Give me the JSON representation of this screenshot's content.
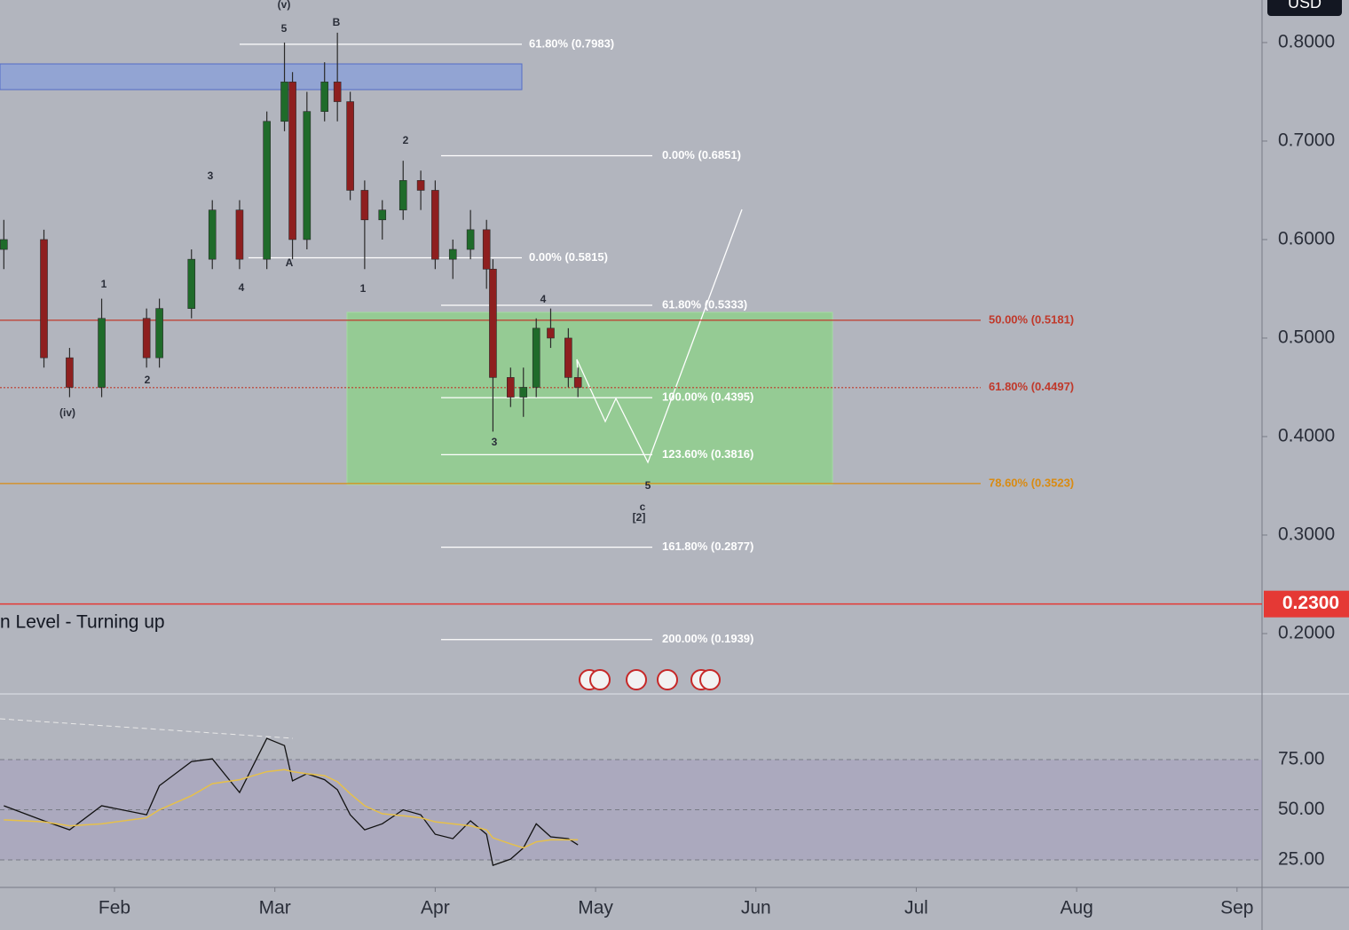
{
  "chart_data": [
    {
      "type": "candlestick",
      "currency": "USD",
      "indicator_title": "n Level - Turning up",
      "up_color": "#1f6b2a",
      "down_color": "#8e1f1f",
      "x": [
        1.31,
        1.56,
        1.72,
        1.92,
        2.2,
        2.28,
        2.48,
        2.61,
        2.78,
        2.95,
        3.06,
        3.11,
        3.2,
        3.31,
        3.39,
        3.47,
        3.56,
        3.67,
        3.8,
        3.91,
        4.0,
        4.11,
        4.22,
        4.32,
        4.36,
        4.47,
        4.55,
        4.63,
        4.72,
        4.83,
        4.89
      ],
      "open": [
        0.59,
        0.6,
        0.48,
        0.45,
        0.52,
        0.48,
        0.53,
        0.58,
        0.63,
        0.58,
        0.72,
        0.76,
        0.6,
        0.73,
        0.76,
        0.74,
        0.65,
        0.62,
        0.63,
        0.66,
        0.65,
        0.58,
        0.59,
        0.61,
        0.57,
        0.46,
        0.44,
        0.45,
        0.51,
        0.5,
        0.46
      ],
      "high": [
        0.62,
        0.61,
        0.49,
        0.54,
        0.53,
        0.54,
        0.59,
        0.64,
        0.64,
        0.73,
        0.8,
        0.77,
        0.75,
        0.78,
        0.81,
        0.75,
        0.66,
        0.64,
        0.68,
        0.67,
        0.66,
        0.6,
        0.63,
        0.62,
        0.58,
        0.47,
        0.47,
        0.52,
        0.53,
        0.51,
        0.47
      ],
      "low": [
        0.57,
        0.47,
        0.44,
        0.44,
        0.47,
        0.47,
        0.52,
        0.57,
        0.57,
        0.57,
        0.71,
        0.58,
        0.59,
        0.72,
        0.72,
        0.64,
        0.57,
        0.6,
        0.62,
        0.63,
        0.57,
        0.56,
        0.58,
        0.55,
        0.405,
        0.43,
        0.42,
        0.44,
        0.49,
        0.45,
        0.44
      ],
      "close": [
        0.6,
        0.48,
        0.45,
        0.52,
        0.48,
        0.53,
        0.58,
        0.63,
        0.58,
        0.72,
        0.76,
        0.6,
        0.73,
        0.76,
        0.74,
        0.65,
        0.62,
        0.63,
        0.66,
        0.65,
        0.58,
        0.59,
        0.61,
        0.57,
        0.46,
        0.44,
        0.45,
        0.51,
        0.5,
        0.46,
        0.45
      ],
      "xlim": [
        1.286,
        9.156
      ],
      "xticks": [
        {
          "value": 2,
          "label": "Feb"
        },
        {
          "value": 3,
          "label": "Mar"
        },
        {
          "value": 4,
          "label": "Apr"
        },
        {
          "value": 5,
          "label": "May"
        },
        {
          "value": 6,
          "label": "Jun"
        },
        {
          "value": 7,
          "label": "Jul"
        },
        {
          "value": 8,
          "label": "Aug"
        },
        {
          "value": 9,
          "label": "Sep"
        }
      ],
      "ylim": [
        0.1288,
        0.8432
      ],
      "yticks": [
        {
          "value": 0.8,
          "label": "0.8000"
        },
        {
          "value": 0.7,
          "label": "0.7000"
        },
        {
          "value": 0.6,
          "label": "0.6000"
        },
        {
          "value": 0.5,
          "label": "0.5000"
        },
        {
          "value": 0.4,
          "label": "0.4000"
        },
        {
          "value": 0.3,
          "label": "0.3000"
        },
        {
          "value": 0.2,
          "label": "0.2000"
        }
      ],
      "current_price": {
        "value": 0.23,
        "label": "0.2300",
        "color": "#e53935"
      },
      "levels": [
        {
          "value": 0.7983,
          "label": "61.80% (0.7983)",
          "color": "#ffffff"
        },
        {
          "value": 0.6851,
          "label": "0.00% (0.6851)",
          "color": "#ffffff"
        },
        {
          "value": 0.5815,
          "label": "0.00% (0.5815)",
          "color": "#ffffff"
        },
        {
          "value": 0.5333,
          "label": "61.80% (0.5333)",
          "color": "#ffffff"
        },
        {
          "value": 0.5181,
          "label": "50.00% (0.5181)",
          "color": "#c0392b"
        },
        {
          "value": 0.4497,
          "label": "61.80% (0.4497)",
          "color": "#c0392b",
          "style": "dotted"
        },
        {
          "value": 0.4395,
          "label": "100.00% (0.4395)",
          "color": "#ffffff"
        },
        {
          "value": 0.3816,
          "label": "123.60% (0.3816)",
          "color": "#ffffff"
        },
        {
          "value": 0.3523,
          "label": "78.60% (0.3523)",
          "color": "#d98b12"
        },
        {
          "value": 0.2877,
          "label": "161.80% (0.2877)",
          "color": "#ffffff"
        },
        {
          "value": 0.1939,
          "label": "200.00% (0.1939)",
          "color": "#ffffff"
        }
      ],
      "wave_labels": [
        "(v)",
        "5",
        "B",
        "A",
        "3",
        "4",
        "1",
        "2",
        "(iv)",
        "2",
        "1",
        "4",
        "3",
        "5",
        "c",
        "[2]"
      ]
    },
    {
      "type": "line",
      "x": [
        1.31,
        1.56,
        1.72,
        1.92,
        2.2,
        2.28,
        2.48,
        2.61,
        2.78,
        2.95,
        3.06,
        3.11,
        3.2,
        3.31,
        3.39,
        3.47,
        3.56,
        3.67,
        3.8,
        3.91,
        4.0,
        4.11,
        4.22,
        4.32,
        4.36,
        4.47,
        4.55,
        4.63,
        4.72,
        4.83,
        4.89
      ],
      "series": [
        {
          "color": "#111111",
          "values": [
            52,
            44.5,
            40,
            52,
            47.5,
            62,
            74,
            75.4,
            58.6,
            85.6,
            82,
            64.4,
            68,
            65,
            60,
            47.5,
            40,
            43,
            50,
            47.5,
            37.8,
            35.6,
            44.5,
            37.8,
            22.3,
            25.4,
            31,
            43,
            36.5,
            35.6,
            32.5
          ]
        },
        {
          "color": "#e6c04a",
          "values": [
            45,
            44,
            42,
            43,
            46,
            50,
            57,
            63,
            65,
            69,
            70,
            69,
            68,
            67,
            64,
            58,
            52,
            48,
            47,
            46,
            44,
            43,
            42,
            40,
            36,
            33,
            31,
            34,
            35,
            35,
            35
          ]
        }
      ],
      "xlim": [
        1.286,
        9.156
      ],
      "ylim": [
        11.3,
        107.3
      ],
      "yticks": [
        {
          "value": 75,
          "label": "75.00"
        },
        {
          "value": 50,
          "label": "50.00"
        },
        {
          "value": 25,
          "label": "25.00"
        }
      ]
    }
  ]
}
